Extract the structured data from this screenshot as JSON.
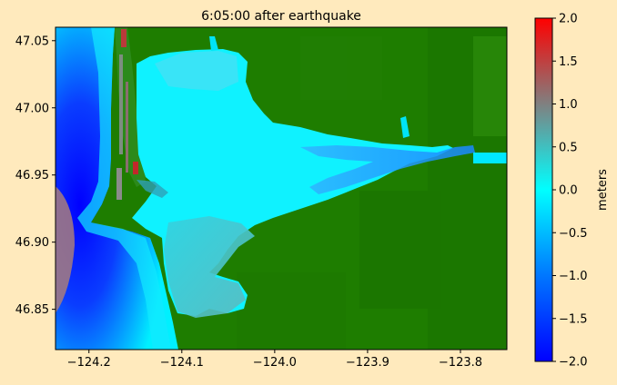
{
  "chart_data": {
    "type": "heatmap",
    "title": "6:05:00 after earthquake",
    "xlabel": "",
    "ylabel": "",
    "xlim": [
      -124.236,
      -123.75
    ],
    "ylim": [
      46.82,
      47.06
    ],
    "x_ticks": [
      -124.2,
      -124.1,
      -124.0,
      -123.9,
      -123.8
    ],
    "x_tick_labels": [
      "−124.2",
      "−124.1",
      "−124.0",
      "−123.9",
      "−123.8"
    ],
    "y_ticks": [
      46.85,
      46.9,
      46.95,
      47.0,
      47.05
    ],
    "y_tick_labels": [
      "46.85",
      "46.90",
      "46.95",
      "47.00",
      "47.05"
    ],
    "colorbar": {
      "label": "meters",
      "vmin": -2.0,
      "vmax": 2.0,
      "ticks": [
        -2.0,
        -1.5,
        -1.0,
        -0.5,
        0.0,
        0.5,
        1.0,
        1.5,
        2.0
      ],
      "tick_labels": [
        "−2.0",
        "−1.5",
        "−1.0",
        "−0.5",
        "0.0",
        "0.5",
        "1.0",
        "1.5",
        "2.0"
      ],
      "colors": [
        "#0000ff",
        "#0077ff",
        "#00ffff",
        "#808080",
        "#ff0000"
      ]
    },
    "land_color": "#1e7d00",
    "grid": false
  }
}
